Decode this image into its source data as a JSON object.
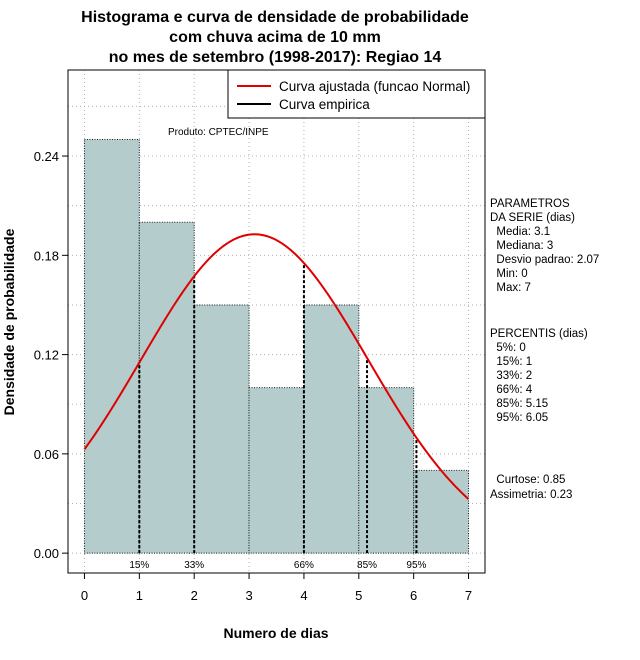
{
  "chart_data": {
    "type": "bar",
    "title_lines": [
      "Histograma e curva de densidade de probabilidade",
      "com chuva acima de 10 mm",
      "no mes de setembro (1998-2017): Regiao 14"
    ],
    "xlabel": "Numero de dias",
    "ylabel": "Densidade de probabilidade",
    "xlim": [
      -0.3,
      7.3
    ],
    "ylim": [
      -0.012,
      0.292
    ],
    "x_ticks": [
      0,
      1,
      2,
      3,
      4,
      5,
      6,
      7
    ],
    "y_ticks": [
      0.0,
      0.06,
      0.12,
      0.18,
      0.24
    ],
    "y_tick_labels": [
      "0.00",
      "0.06",
      "0.12",
      "0.18",
      "0.24"
    ],
    "bins": [
      [
        0,
        1
      ],
      [
        1,
        2
      ],
      [
        2,
        3
      ],
      [
        3,
        4
      ],
      [
        4,
        5
      ],
      [
        5,
        6
      ],
      [
        6,
        7
      ]
    ],
    "values": [
      0.25,
      0.2,
      0.15,
      0.1,
      0.15,
      0.1,
      0.05
    ],
    "bar_color": "#b4cccc",
    "curve_color": "#e00000",
    "normal_fit": {
      "mean": 3.1,
      "sd": 2.07
    },
    "percentiles": [
      {
        "label": "15%",
        "x": 1
      },
      {
        "label": "33%",
        "x": 2
      },
      {
        "label": "66%",
        "x": 4
      },
      {
        "label": "85%",
        "x": 5.15
      },
      {
        "label": "95%",
        "x": 6.05
      }
    ],
    "legend": {
      "entries": [
        {
          "label": "Curva ajustada (funcao Normal)",
          "color": "#e00000"
        },
        {
          "label": "Curva empirica",
          "color": "#000000"
        }
      ]
    },
    "product_note": "Produto: CPTEC/INPE",
    "parametros": {
      "lines": [
        "PARAMETROS",
        "DA SERIE (dias)",
        "  Media: 3.1",
        "  Mediana: 3",
        "  Desvio padrao: 2.07",
        "  Min: 0",
        "  Max: 7"
      ]
    },
    "percentis_panel": {
      "lines": [
        "PERCENTIS (dias)",
        "  5%: 0",
        "  15%: 1",
        "  33%: 2",
        "  66%: 4",
        "  85%: 5.15",
        "  95%: 6.05"
      ]
    },
    "stats": {
      "lines": [
        "  Curtose: 0.85",
        "Assimetria: 0.23"
      ]
    }
  }
}
